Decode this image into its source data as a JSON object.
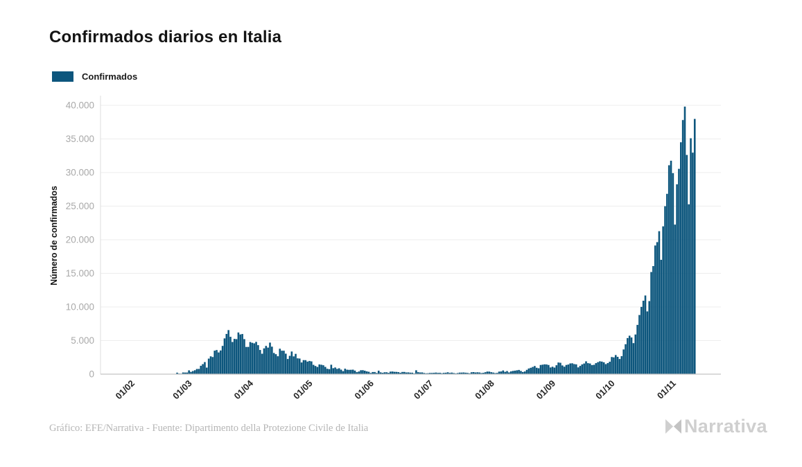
{
  "header": {
    "title": "Confirmados diarios en Italia"
  },
  "legend": {
    "items": [
      {
        "label": "Confirmados",
        "color": "#0d567d"
      }
    ]
  },
  "footer": {
    "credit": "Gráfico: EFE/Narrativa - Fuente: Dipartimento della Protezione Civile de Italia",
    "logo_text": "Narrativa"
  },
  "colors": {
    "bar": "#0d567d",
    "grid": "#ededed",
    "axis_bottom": "#c4c4c4",
    "axis_left": "#dedede",
    "ytick_text": "#a9a9a9",
    "xtick_text": "#262626",
    "title_text": "#141414",
    "credit_text": "#b5b5b5",
    "logo_gray": "#cfcfcf"
  },
  "chart_data": {
    "type": "bar",
    "title": "Confirmados diarios en Italia",
    "series_name": "Confirmados",
    "xlabel": "",
    "ylabel": "Número de confirmados",
    "ylim": [
      0,
      40000
    ],
    "ytick_values": [
      0,
      5000,
      10000,
      15000,
      20000,
      25000,
      30000,
      35000,
      40000
    ],
    "ytick_labels": [
      "0",
      "5.000",
      "10.000",
      "15.000",
      "20.000",
      "25.000",
      "30.000",
      "35.000",
      "40.000"
    ],
    "xtick_labels": [
      "01/02",
      "01/03",
      "01/04",
      "01/05",
      "01/06",
      "01/07",
      "01/08",
      "01/09",
      "01/10",
      "01/11"
    ],
    "xtick_day_offsets_from_feb1": [
      0,
      29,
      60,
      90,
      121,
      151,
      182,
      213,
      243,
      274
    ],
    "grid": "horizontal-only",
    "legend_position": "top-left",
    "start_date": "2020-02-24",
    "end_date": "2020-11-12",
    "start_day_offset_from_feb1": 23,
    "values": [
      221,
      93,
      78,
      250,
      238,
      240,
      566,
      342,
      466,
      587,
      769,
      778,
      1247,
      1492,
      1797,
      977,
      2313,
      2651,
      2547,
      3497,
      3590,
      3233,
      3526,
      4207,
      5322,
      5986,
      6557,
      5560,
      4789,
      5249,
      5210,
      6203,
      5909,
      5974,
      5217,
      4050,
      4053,
      4782,
      4668,
      4585,
      4805,
      4316,
      3599,
      3039,
      3836,
      4204,
      3951,
      4694,
      4092,
      3153,
      2972,
      2667,
      3786,
      3493,
      3491,
      3047,
      2256,
      2729,
      3370,
      2646,
      3021,
      2357,
      2324,
      1739,
      2091,
      2086,
      1872,
      1965,
      1900,
      1389,
      1221,
      1075,
      1444,
      1401,
      1327,
      1083,
      802,
      744,
      1402,
      888,
      992,
      789,
      875,
      675,
      451,
      813,
      665,
      642,
      652,
      669,
      531,
      300,
      397,
      584,
      593,
      516,
      416,
      355,
      178,
      318,
      321,
      177,
      518,
      270,
      197,
      280,
      283,
      202,
      379,
      393,
      346,
      338,
      301,
      210,
      329,
      331,
      251,
      262,
      224,
      218,
      113,
      577,
      296,
      255,
      259,
      174,
      126,
      142,
      187,
      182,
      201,
      235,
      192,
      208,
      138,
      193,
      214,
      276,
      188,
      234,
      169,
      114,
      162,
      230,
      233,
      249,
      219,
      190,
      128,
      282,
      306,
      252,
      275,
      255,
      168,
      202,
      289,
      386,
      379,
      295,
      239,
      159,
      190,
      384,
      402,
      552,
      347,
      463,
      259,
      412,
      481,
      523,
      574,
      629,
      479,
      320,
      403,
      642,
      845,
      947,
      1071,
      1210,
      953,
      878,
      1367,
      1411,
      1462,
      1444,
      1365,
      996,
      1108,
      978,
      1326,
      1733,
      1695,
      1297,
      1108,
      1370,
      1434,
      1597,
      1616,
      1501,
      1458,
      1008,
      1229,
      1452,
      1585,
      1907,
      1638,
      1587,
      1350,
      1392,
      1640,
      1786,
      1912,
      1869,
      1766,
      1494,
      1648,
      1851,
      2548,
      2499,
      2844,
      2578,
      2257,
      2677,
      3678,
      4458,
      5372,
      5724,
      5456,
      4619,
      5901,
      7332,
      8804,
      10010,
      10925,
      11705,
      9338,
      10874,
      15199,
      16079,
      19143,
      19644,
      21273,
      17012,
      21994,
      24991,
      26831,
      31084,
      31758,
      29907,
      22253,
      28244,
      30550,
      34505,
      37809,
      39811,
      32616,
      25271,
      35098,
      32961,
      37978
    ]
  }
}
